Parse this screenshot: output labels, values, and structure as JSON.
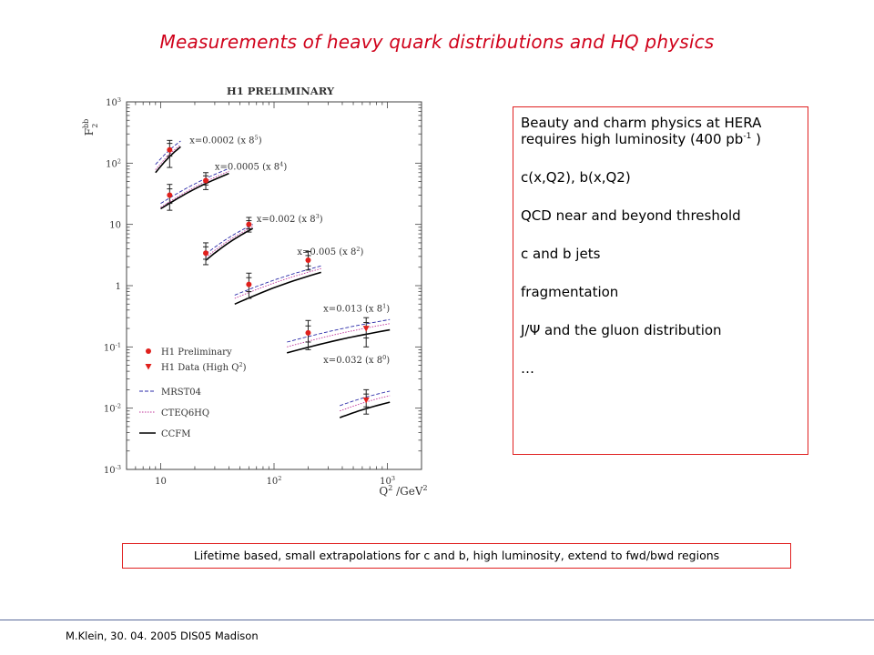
{
  "slide": {
    "title": "Measurements of heavy quark distributions and HQ physics",
    "footer": "M.Klein, 30. 04. 2005 DIS05 Madison"
  },
  "info_box": {
    "line1": "Beauty and charm physics at HERA",
    "line2_prefix": "requires high luminosity (400 pb",
    "line2_sup": "-1",
    "line2_suffix": " )",
    "items": [
      "c(x,Q2), b(x,Q2)",
      "QCD near and beyond threshold",
      "c and b jets",
      "fragmentation",
      "J/Ψ and the gluon distribution",
      "…"
    ]
  },
  "note": {
    "arrow": "",
    "text": " Lifetime based, small extrapolations  for c and b, high luminosity, extend to fwd/bwd regions"
  },
  "chart_data": {
    "type": "scatter",
    "title": "H1 PRELIMINARY",
    "xlabel_main": "Q",
    "xlabel_sup1": "2",
    "xlabel_rest": " /GeV",
    "xlabel_sup2": "2",
    "ylabel_main": "F",
    "ylabel_sup": "bb",
    "ylabel_sub": "2",
    "x_scale": "log",
    "y_scale": "log",
    "xlim": [
      5,
      2000
    ],
    "ylim": [
      0.001,
      1000
    ],
    "x_ticks": [
      {
        "value": 10,
        "label": "10",
        "sup": ""
      },
      {
        "value": 100,
        "label": "10",
        "sup": "2"
      },
      {
        "value": 1000,
        "label": "10",
        "sup": "3"
      }
    ],
    "y_ticks": [
      {
        "value": 1000,
        "label": "10",
        "sup": "3"
      },
      {
        "value": 100,
        "label": "10",
        "sup": "2"
      },
      {
        "value": 10,
        "label": "10",
        "sup": ""
      },
      {
        "value": 1,
        "label": "1",
        "sup": ""
      },
      {
        "value": 0.1,
        "label": "10",
        "sup": "-1"
      },
      {
        "value": 0.01,
        "label": "10",
        "sup": "-2"
      },
      {
        "value": 0.001,
        "label": "10",
        "sup": "-3"
      }
    ],
    "bins": [
      {
        "label": "x=0.0002 (x 8",
        "label_sup": "5",
        "label_suffix": ")",
        "label_pos": {
          "q2": 18,
          "f": 210
        },
        "range": [
          9,
          15
        ],
        "mrst": [
          95,
          230
        ],
        "cteq": [
          78,
          200
        ],
        "ccfm": [
          70,
          185
        ],
        "prelim": [
          {
            "q2": 12,
            "f": 165,
            "err_in": [
              130,
              210
            ],
            "err_out": [
              85,
              235
            ]
          }
        ],
        "hq": []
      },
      {
        "label": "x=0.0005 (x 8",
        "label_sup": "4",
        "label_suffix": ")",
        "label_pos": {
          "q2": 30,
          "f": 78
        },
        "range": [
          10,
          40
        ],
        "mrst": [
          22,
          82
        ],
        "cteq": [
          19,
          74
        ],
        "ccfm": [
          18,
          68
        ],
        "prelim": [
          {
            "q2": 12,
            "f": 30,
            "err_in": [
              22,
              38
            ],
            "err_out": [
              17,
              45
            ]
          },
          {
            "q2": 25,
            "f": 52,
            "err_in": [
              44,
              62
            ],
            "err_out": [
              37,
              70
            ]
          }
        ],
        "hq": []
      },
      {
        "label": "x=0.002 (x 8",
        "label_sup": "3",
        "label_suffix": ")",
        "label_pos": {
          "q2": 70,
          "f": 11
        },
        "range": [
          25,
          65
        ],
        "mrst": [
          3.3,
          10
        ],
        "cteq": [
          2.9,
          9.2
        ],
        "ccfm": [
          2.6,
          8.6
        ],
        "prelim": [
          {
            "q2": 25,
            "f": 3.4,
            "err_in": [
              2.7,
              4.3
            ],
            "err_out": [
              2.2,
              5
            ]
          },
          {
            "q2": 60,
            "f": 10,
            "err_in": [
              8.5,
              11.5
            ],
            "err_out": [
              7.5,
              13
            ]
          }
        ],
        "hq": []
      },
      {
        "label": "x=0.005 (x 8",
        "label_sup": "2",
        "label_suffix": ")",
        "label_pos": {
          "q2": 160,
          "f": 3.2
        },
        "range": [
          45,
          260
        ],
        "mrst": [
          0.7,
          2.1
        ],
        "cteq": [
          0.62,
          1.9
        ],
        "ccfm": [
          0.5,
          1.65
        ],
        "prelim": [
          {
            "q2": 60,
            "f": 1.05,
            "err_in": [
              0.8,
              1.35
            ],
            "err_out": [
              0.62,
              1.6
            ]
          },
          {
            "q2": 200,
            "f": 2.6,
            "err_in": [
              2.1,
              3.1
            ],
            "err_out": [
              1.8,
              3.6
            ]
          }
        ],
        "hq": []
      },
      {
        "label": "x=0.013 (x 8",
        "label_sup": "1",
        "label_suffix": ")",
        "label_pos": {
          "q2": 1050,
          "f": 0.38
        },
        "range": [
          130,
          1050
        ],
        "mrst": [
          0.12,
          0.28
        ],
        "cteq": [
          0.1,
          0.24
        ],
        "ccfm": [
          0.08,
          0.19
        ],
        "prelim": [
          {
            "q2": 200,
            "f": 0.17,
            "err_in": [
              0.12,
              0.22
            ],
            "err_out": [
              0.09,
              0.27
            ]
          }
        ],
        "hq": [
          {
            "q2": 650,
            "f": 0.2,
            "err_in": [
              0.14,
              0.25
            ],
            "err_out": [
              0.1,
              0.3
            ]
          }
        ]
      },
      {
        "label": "x=0.032 (x 8",
        "label_sup": "0",
        "label_suffix": ")",
        "label_pos": {
          "q2": 1050,
          "f": 0.055
        },
        "range": [
          380,
          1050
        ],
        "mrst": [
          0.011,
          0.019
        ],
        "cteq": [
          0.009,
          0.016
        ],
        "ccfm": [
          0.007,
          0.0125
        ],
        "prelim": [],
        "hq": [
          {
            "q2": 650,
            "f": 0.0135,
            "err_in": [
              0.0105,
              0.017
            ],
            "err_out": [
              0.008,
              0.02
            ]
          }
        ]
      }
    ],
    "legend": {
      "placement": "bottom-left",
      "prelim": "H1 Preliminary",
      "hq_main": "H1 Data (High Q",
      "hq_sup": "2",
      "hq_suffix": ")",
      "mrst": "MRST04",
      "cteq": "CTEQ6HQ",
      "ccfm": "CCFM"
    },
    "colors": {
      "mrst": "#2a2aa8",
      "cteq": "#c0349a",
      "ccfm": "#000000",
      "points": "#e0201c"
    }
  }
}
